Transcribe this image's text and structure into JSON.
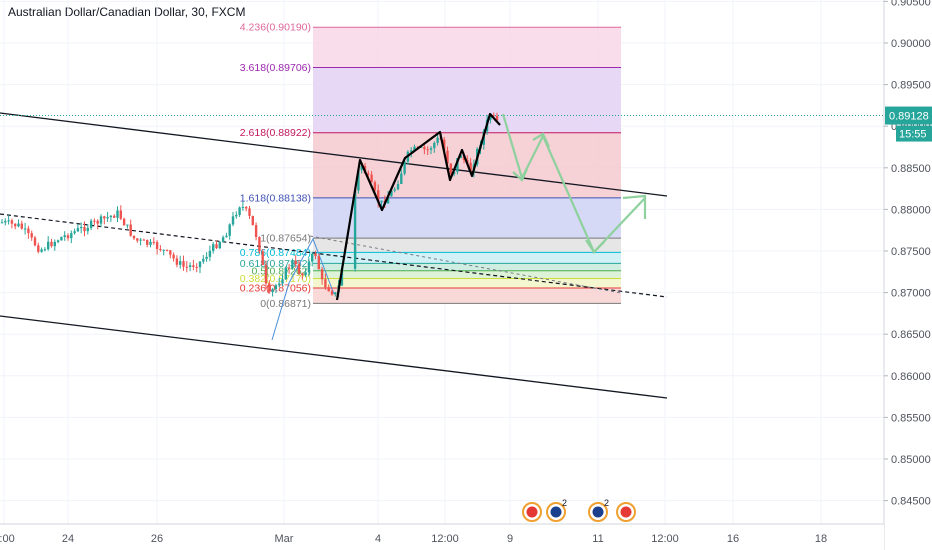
{
  "chart_data": {
    "type": "candlestick",
    "title": "Australian Dollar/Canadian Dollar, 30, FXCM",
    "instrument": "AUDCAD",
    "timeframe": "30",
    "source": "FXCM",
    "ylim": [
      0.842,
      0.9055
    ],
    "y_ticks": [
      "0.90500",
      "0.90000",
      "0.89500",
      "0.89000",
      "0.88500",
      "0.88000",
      "0.87500",
      "0.87000",
      "0.86500",
      "0.86000",
      "0.85500",
      "0.85000",
      "0.84500"
    ],
    "x_ticks": [
      "2:00",
      "24",
      "26",
      "Mar",
      "4",
      "12:00",
      "9",
      "11",
      "12:00",
      "16",
      "18"
    ],
    "last_price": "0.89128",
    "countdown": "15:55",
    "fibonacci": {
      "levels": [
        {
          "ratio": "4.236",
          "price": "0.90190",
          "color": "#e0689b",
          "fill": "#f8d7e6"
        },
        {
          "ratio": "3.618",
          "price": "0.89706",
          "color": "#9c27b0",
          "fill": "#e3d2f5"
        },
        {
          "ratio": "2.618",
          "price": "0.88922",
          "color": "#c2185b",
          "fill": "#f5c9cf"
        },
        {
          "ratio": "1.618",
          "price": "0.88138",
          "color": "#3f51b5",
          "fill": "#cfd2f5"
        },
        {
          "ratio": "1",
          "price": "0.87654",
          "color": "#787878",
          "fill": "#e2e2e2"
        },
        {
          "ratio": "0.786",
          "price": "0.87484",
          "color": "#00bcd4",
          "fill": "#c9eff4"
        },
        {
          "ratio": "0.618",
          "price": "0.87352",
          "color": "#26a69a",
          "fill": "#c8eadc"
        },
        {
          "ratio": "0.5",
          "price": "0.87262",
          "color": "#4caf50",
          "fill": "#d7f0cf"
        },
        {
          "ratio": "0.382",
          "price": "0.87170",
          "color": "#cddc39",
          "fill": "#f2f5c8"
        },
        {
          "ratio": "0.236",
          "price": "0.87056",
          "color": "#e53935",
          "fill": "#f8d1d1"
        },
        {
          "ratio": "0",
          "price": "0.86871",
          "color": "#787878",
          "fill": "#ffffff"
        }
      ]
    },
    "projection_arrows": "light-green",
    "events": [
      "CAD",
      "AUD 2",
      "AUD 2",
      "CAD"
    ],
    "grid": true,
    "legend": "none"
  }
}
